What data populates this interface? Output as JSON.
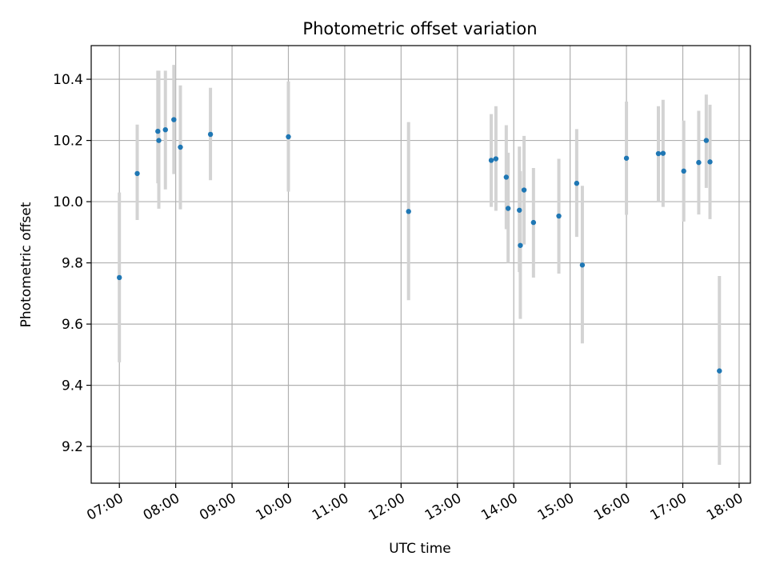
{
  "chart_data": {
    "type": "scatter",
    "title": "Photometric offset variation",
    "xlabel": "UTC time",
    "ylabel": "Photometric offset",
    "x_unit": "hours UTC",
    "xlim": [
      6.5,
      18.2
    ],
    "ylim": [
      9.08,
      10.51
    ],
    "grid": true,
    "xticks": [
      {
        "value": 7,
        "label": "07:00"
      },
      {
        "value": 8,
        "label": "08:00"
      },
      {
        "value": 9,
        "label": "09:00"
      },
      {
        "value": 10,
        "label": "10:00"
      },
      {
        "value": 11,
        "label": "11:00"
      },
      {
        "value": 12,
        "label": "12:00"
      },
      {
        "value": 13,
        "label": "13:00"
      },
      {
        "value": 14,
        "label": "14:00"
      },
      {
        "value": 15,
        "label": "15:00"
      },
      {
        "value": 16,
        "label": "16:00"
      },
      {
        "value": 17,
        "label": "17:00"
      },
      {
        "value": 18,
        "label": "18:00"
      }
    ],
    "yticks": [
      {
        "value": 9.2,
        "label": "9.2"
      },
      {
        "value": 9.4,
        "label": "9.4"
      },
      {
        "value": 9.6,
        "label": "9.6"
      },
      {
        "value": 9.8,
        "label": "9.8"
      },
      {
        "value": 10.0,
        "label": "10.0"
      },
      {
        "value": 10.2,
        "label": "10.2"
      },
      {
        "value": 10.4,
        "label": "10.4"
      }
    ],
    "colors": {
      "point": "#1f77b4",
      "errorbar": "#d3d3d3",
      "grid": "#b0b0b0"
    },
    "points": [
      {
        "x": 7.0,
        "y": 9.752,
        "ylow": 9.475,
        "yhigh": 10.03
      },
      {
        "x": 7.317,
        "y": 10.092,
        "ylow": 9.94,
        "yhigh": 10.252
      },
      {
        "x": 7.683,
        "y": 10.23,
        "ylow": 10.06,
        "yhigh": 10.428
      },
      {
        "x": 7.7,
        "y": 10.2,
        "ylow": 9.977,
        "yhigh": 10.428
      },
      {
        "x": 7.817,
        "y": 10.235,
        "ylow": 10.04,
        "yhigh": 10.428
      },
      {
        "x": 7.967,
        "y": 10.268,
        "ylow": 10.09,
        "yhigh": 10.447
      },
      {
        "x": 8.083,
        "y": 10.178,
        "ylow": 9.975,
        "yhigh": 10.38
      },
      {
        "x": 8.617,
        "y": 10.22,
        "ylow": 10.07,
        "yhigh": 10.372
      },
      {
        "x": 10.0,
        "y": 10.212,
        "ylow": 10.033,
        "yhigh": 10.393
      },
      {
        "x": 12.133,
        "y": 9.968,
        "ylow": 9.678,
        "yhigh": 10.26
      },
      {
        "x": 13.6,
        "y": 10.135,
        "ylow": 9.983,
        "yhigh": 10.286
      },
      {
        "x": 13.683,
        "y": 10.14,
        "ylow": 9.97,
        "yhigh": 10.312
      },
      {
        "x": 13.867,
        "y": 10.08,
        "ylow": 9.91,
        "yhigh": 10.25
      },
      {
        "x": 13.9,
        "y": 9.978,
        "ylow": 9.8,
        "yhigh": 10.16
      },
      {
        "x": 14.1,
        "y": 9.972,
        "ylow": 9.77,
        "yhigh": 10.18
      },
      {
        "x": 14.117,
        "y": 9.857,
        "ylow": 9.617,
        "yhigh": 10.1
      },
      {
        "x": 14.183,
        "y": 10.038,
        "ylow": 9.86,
        "yhigh": 10.215
      },
      {
        "x": 14.35,
        "y": 9.932,
        "ylow": 9.752,
        "yhigh": 10.11
      },
      {
        "x": 14.8,
        "y": 9.953,
        "ylow": 9.765,
        "yhigh": 10.14
      },
      {
        "x": 15.117,
        "y": 10.06,
        "ylow": 9.885,
        "yhigh": 10.237
      },
      {
        "x": 15.217,
        "y": 9.793,
        "ylow": 9.537,
        "yhigh": 10.052
      },
      {
        "x": 16.0,
        "y": 10.142,
        "ylow": 9.957,
        "yhigh": 10.327
      },
      {
        "x": 16.567,
        "y": 10.157,
        "ylow": 10.0,
        "yhigh": 10.312
      },
      {
        "x": 16.65,
        "y": 10.158,
        "ylow": 9.983,
        "yhigh": 10.333
      },
      {
        "x": 17.017,
        "y": 10.1,
        "ylow": 9.935,
        "yhigh": 10.265
      },
      {
        "x": 17.283,
        "y": 10.128,
        "ylow": 9.958,
        "yhigh": 10.297
      },
      {
        "x": 17.417,
        "y": 10.2,
        "ylow": 10.045,
        "yhigh": 10.35
      },
      {
        "x": 17.483,
        "y": 10.13,
        "ylow": 9.943,
        "yhigh": 10.317
      },
      {
        "x": 17.65,
        "y": 9.447,
        "ylow": 9.14,
        "yhigh": 9.757
      }
    ]
  }
}
